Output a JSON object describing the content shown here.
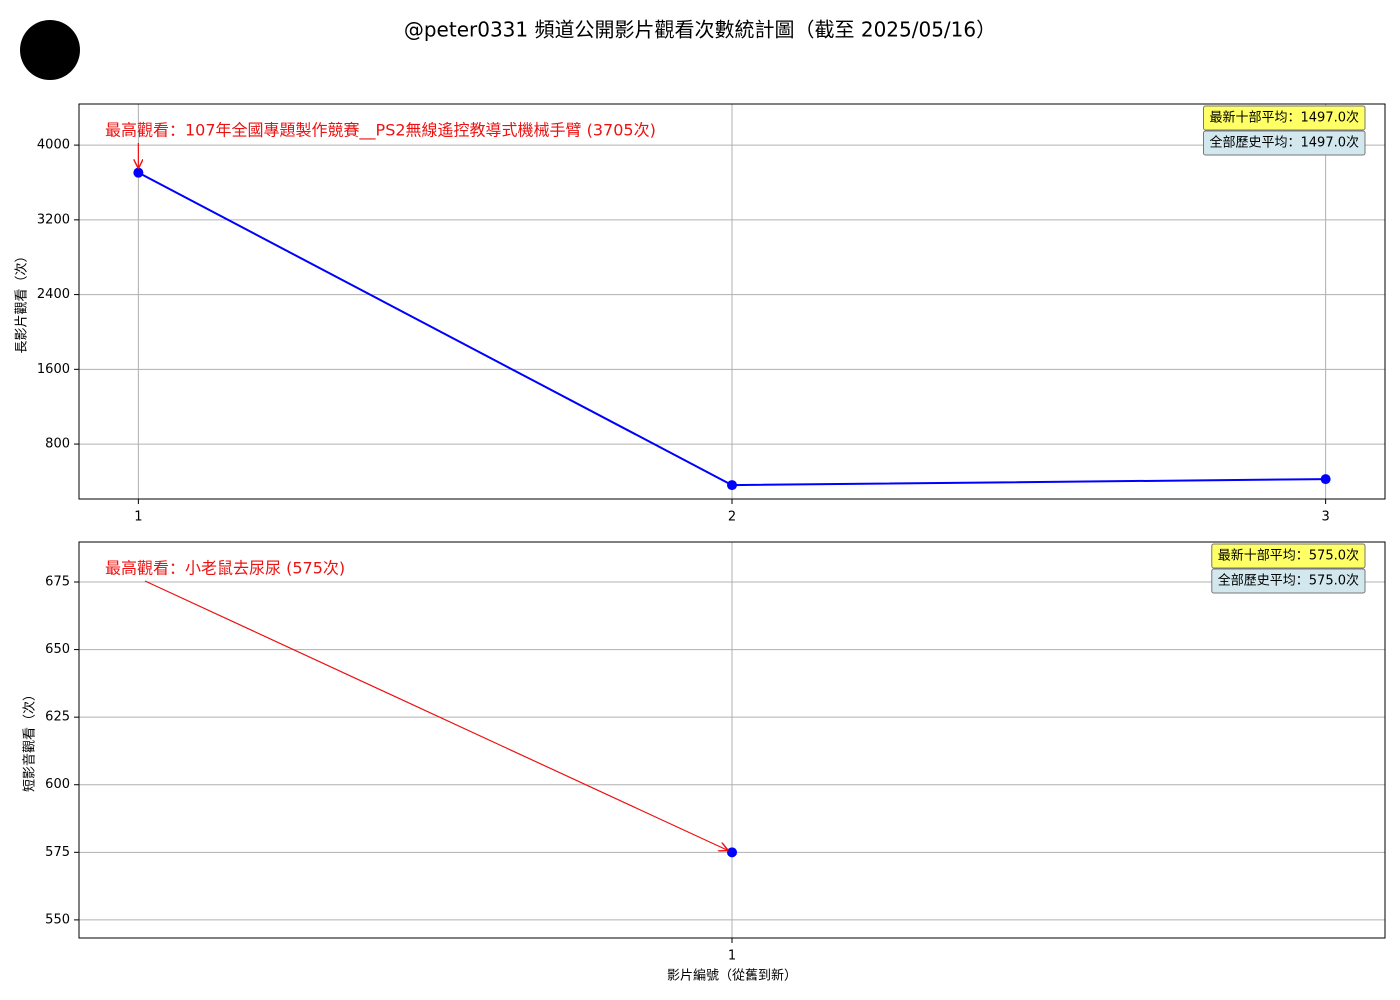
{
  "title": "@peter0331 頻道公開影片觀看次數統計圖（截至 2025/05/16）",
  "chart_data": [
    {
      "type": "line",
      "ylabel": "長影片觀看（次）",
      "x": [
        1,
        2,
        3
      ],
      "values": [
        3705,
        361,
        425
      ],
      "color": "#0000ff",
      "xlim": [
        0.9,
        3.1
      ],
      "xticks": [
        1,
        2,
        3
      ],
      "ylim": [
        212,
        4440
      ],
      "yticks": [
        800,
        1600,
        2400,
        3200,
        4000
      ],
      "grid": true,
      "annotation": "最高觀看：107年全國專題製作競賽__PS2無線遙控教導式機械手臂 (3705次)",
      "stats": [
        "最新十部平均：1497.0次",
        "全部歷史平均：1497.0次"
      ]
    },
    {
      "type": "line",
      "ylabel": "短影音觀看（次）",
      "xlabel": "影片編號（從舊到新）",
      "x": [
        1
      ],
      "values": [
        575
      ],
      "color": "#0000ff",
      "xlim": [
        0.945,
        1.055
      ],
      "xticks": [
        1
      ],
      "ylim": [
        543.3,
        689.8
      ],
      "yticks": [
        550,
        575,
        600,
        625,
        650,
        675
      ],
      "grid": true,
      "annotation": "最高觀看：小老鼠去尿尿 (575次)",
      "stats": [
        "最新十部平均：575.0次",
        "全部歷史平均：575.0次"
      ]
    }
  ]
}
